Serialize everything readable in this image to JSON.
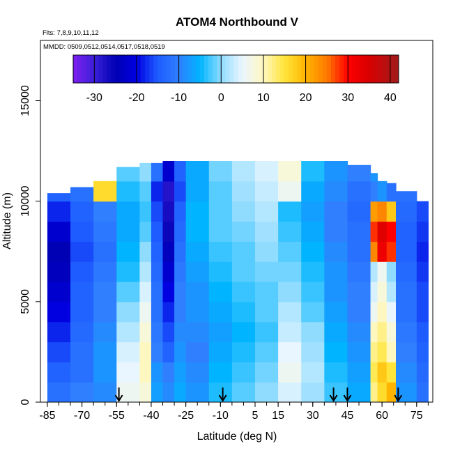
{
  "chart_data": {
    "type": "heatmap",
    "title": "ATOM4 Northbound V",
    "subtitle_flights": "Flts: 7,8,9,10,11,12",
    "subtitle_dates": "MMDD: 0509,0512,0514,0517,0518,0519",
    "xlabel": "Latitude (deg N)",
    "ylabel": "Altitude (m)",
    "xlim": [
      -88,
      82
    ],
    "ylim": [
      0,
      18000
    ],
    "x_ticks": [
      -85,
      -70,
      -55,
      -40,
      -25,
      -10,
      5,
      15,
      30,
      45,
      60,
      75
    ],
    "x_tick_labels": [
      "-85",
      "-70",
      "-55",
      "-40",
      "-25",
      "-10",
      "5",
      "15",
      "30",
      "45",
      "60",
      "75"
    ],
    "y_ticks": [
      0,
      5000,
      10000,
      15000
    ],
    "y_tick_labels": [
      "0",
      "5000",
      "10000",
      "15000"
    ],
    "colorbar": {
      "range": [
        -35,
        42
      ],
      "ticks": [
        -30,
        -20,
        -10,
        0,
        10,
        20,
        30,
        40
      ],
      "tick_labels": [
        "-30",
        "-20",
        "-10",
        "0",
        "10",
        "20",
        "30",
        "40"
      ],
      "stops": [
        {
          "v": -35,
          "color": "#7f1ff0"
        },
        {
          "v": -30,
          "color": "#3a1fd8"
        },
        {
          "v": -25,
          "color": "#0000b4"
        },
        {
          "v": -20,
          "color": "#0000e0"
        },
        {
          "v": -15,
          "color": "#1e5cff"
        },
        {
          "v": -10,
          "color": "#2f7fff"
        },
        {
          "v": -5,
          "color": "#00b4ff"
        },
        {
          "v": 0,
          "color": "#8fdcff"
        },
        {
          "v": 5,
          "color": "#eaf6ff"
        },
        {
          "v": 10,
          "color": "#fff7c0"
        },
        {
          "v": 15,
          "color": "#ffe53a"
        },
        {
          "v": 20,
          "color": "#ffb400"
        },
        {
          "v": 25,
          "color": "#ff7a00"
        },
        {
          "v": 30,
          "color": "#ff0000"
        },
        {
          "v": 35,
          "color": "#d80000"
        },
        {
          "v": 42,
          "color": "#a01c1c"
        }
      ]
    },
    "flight_markers_lat": [
      -54,
      -9,
      39,
      45,
      67
    ],
    "lat_bins": [
      -85,
      -75,
      -65,
      -55,
      -45,
      -40,
      -35,
      -30,
      -25,
      -15,
      -5,
      5,
      15,
      25,
      35,
      45,
      55,
      58,
      62,
      66,
      75,
      80
    ],
    "alt_bins": [
      0,
      1000,
      2000,
      3000,
      4000,
      5000,
      6000,
      7000,
      8000,
      9000,
      10000,
      11000,
      12000
    ],
    "alt_top_by_lat": [
      10400,
      10700,
      11000,
      11700,
      11900,
      11900,
      12000,
      12000,
      12100,
      12100,
      12100,
      12100,
      12200,
      12100,
      12000,
      11800,
      11400,
      11000,
      10900,
      10500,
      10000
    ],
    "v_values": [
      [
        -12,
        -10,
        -9,
        6,
        8,
        -7,
        -9,
        -6,
        -8,
        -4,
        -2,
        0,
        4,
        1,
        -3,
        -6,
        12,
        16,
        20,
        -8,
        -12
      ],
      [
        -14,
        -12,
        -8,
        5,
        10,
        -8,
        -10,
        -7,
        -9,
        -5,
        -3,
        -1,
        6,
        2,
        -4,
        -7,
        14,
        18,
        15,
        -9,
        -13
      ],
      [
        -16,
        -12,
        -8,
        4,
        10,
        -10,
        -14,
        -8,
        -10,
        -6,
        -4,
        -2,
        5,
        1,
        -5,
        -8,
        12,
        14,
        10,
        -10,
        -14
      ],
      [
        -18,
        -13,
        -9,
        2,
        8,
        -11,
        -16,
        -9,
        -9,
        -7,
        -5,
        -3,
        3,
        0,
        -6,
        -9,
        10,
        12,
        8,
        -11,
        -15
      ],
      [
        -20,
        -14,
        -10,
        0,
        6,
        -12,
        -18,
        -10,
        -8,
        -6,
        -4,
        -2,
        2,
        -2,
        -7,
        -10,
        6,
        10,
        5,
        -12,
        -16
      ],
      [
        -22,
        -14,
        -10,
        -2,
        4,
        -12,
        -20,
        -10,
        -8,
        -5,
        -3,
        -2,
        0,
        -3,
        -8,
        -10,
        4,
        8,
        2,
        -12,
        -16
      ],
      [
        -24,
        -15,
        -11,
        -4,
        2,
        -13,
        -22,
        -11,
        -7,
        -4,
        -2,
        -1,
        -1,
        -4,
        -8,
        -11,
        2,
        6,
        0,
        -13,
        -17
      ],
      [
        -25,
        -16,
        -12,
        -5,
        0,
        -14,
        -24,
        -12,
        -6,
        -3,
        -2,
        0,
        -2,
        -5,
        -9,
        -12,
        24,
        32,
        28,
        -14,
        -18
      ],
      [
        -22,
        -15,
        -11,
        -6,
        -2,
        -15,
        -26,
        -13,
        -5,
        -2,
        -1,
        1,
        -3,
        -6,
        -10,
        -12,
        28,
        34,
        30,
        -14,
        -17
      ],
      [
        -18,
        -14,
        -10,
        -6,
        -3,
        -16,
        -27,
        -14,
        -5,
        -2,
        0,
        2,
        -4,
        -7,
        -10,
        -13,
        22,
        24,
        18,
        -13,
        -16
      ],
      [
        -14,
        -12,
        16,
        -4,
        -2,
        -18,
        -28,
        -16,
        -6,
        -2,
        1,
        3,
        6,
        -6,
        -9,
        -12,
        -10,
        -8,
        -12,
        -12,
        -14
      ],
      [
        -10,
        -8,
        12,
        -2,
        0,
        -12,
        -22,
        -14,
        -6,
        -1,
        2,
        4,
        8,
        -4,
        -8,
        -10,
        -8,
        -6,
        -10,
        -10,
        -12
      ]
    ]
  }
}
